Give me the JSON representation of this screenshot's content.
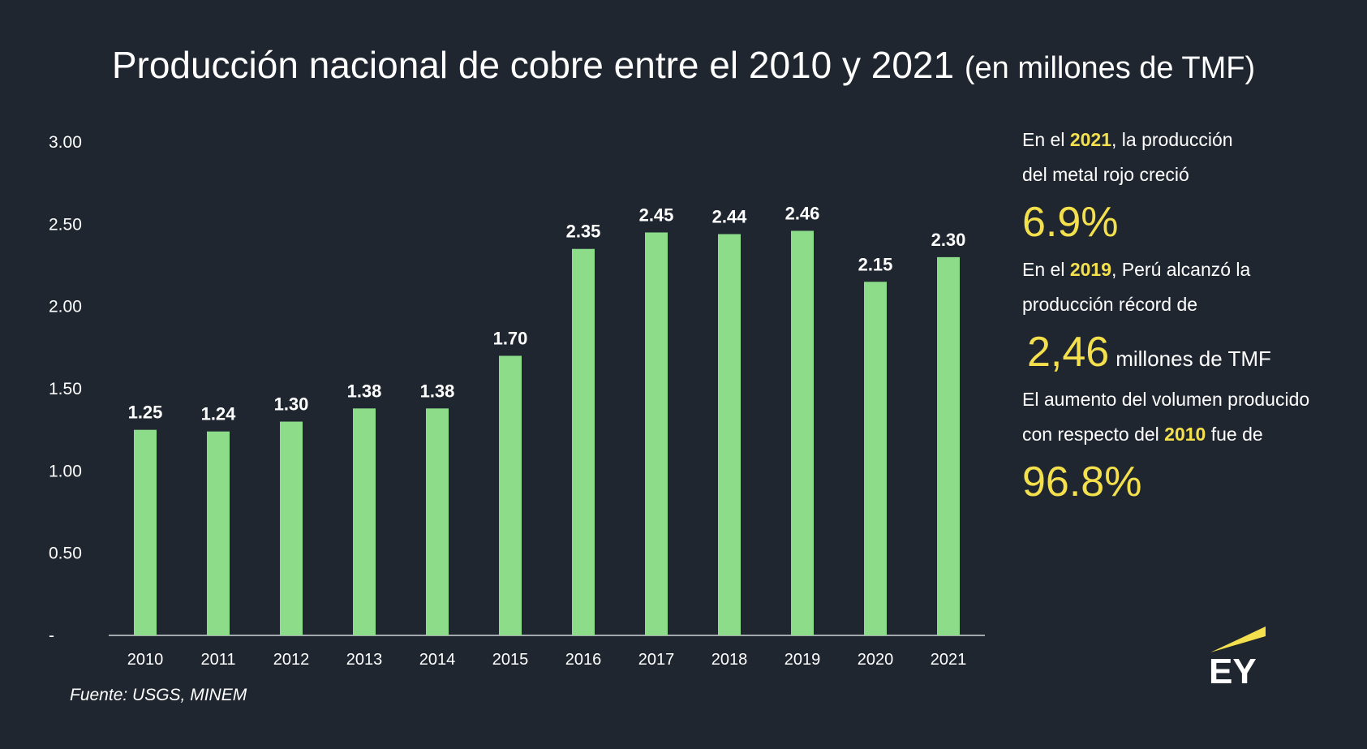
{
  "title": {
    "main": "Producción nacional de cobre entre el 2010 y 2021",
    "sub": "(en millones de TMF)"
  },
  "chart_data": {
    "type": "bar",
    "categories": [
      "2010",
      "2011",
      "2012",
      "2013",
      "2014",
      "2015",
      "2016",
      "2017",
      "2018",
      "2019",
      "2020",
      "2021"
    ],
    "values": [
      1.25,
      1.24,
      1.3,
      1.38,
      1.38,
      1.7,
      2.35,
      2.45,
      2.44,
      2.46,
      2.15,
      2.3
    ],
    "value_labels": [
      "1.25",
      "1.24",
      "1.30",
      "1.38",
      "1.38",
      "1.70",
      "2.35",
      "2.45",
      "2.44",
      "2.46",
      "2.15",
      "2.30"
    ],
    "ylim": [
      0,
      3
    ],
    "yticks": [
      0,
      0.5,
      1,
      1.5,
      2,
      2.5,
      3
    ],
    "ytick_labels": [
      "-",
      "0.50",
      "1.00",
      "1.50",
      "2.00",
      "2.50",
      "3.00"
    ],
    "grid": false,
    "bar_color": "#8cdc8a"
  },
  "source": "Fuente: USGS, MINEM",
  "panel": {
    "l1_pre": "En el ",
    "l1_year": "2021",
    "l1_post": ", la producción",
    "l2": "del metal rojo creció",
    "v1": "6.9%",
    "l3_pre": "En el ",
    "l3_year": "2019",
    "l3_post": ", Perú alcanzó la",
    "l4": "producción récord de",
    "v2": "2,46",
    "v2_unit": "millones de TMF",
    "l5": "El aumento del volumen producido",
    "l6_pre": "con respecto del ",
    "l6_year": "2010",
    "l6_post": " fue de",
    "v3": "96.8%"
  },
  "colors": {
    "background": "#1f2630",
    "highlight": "#f4e04d"
  },
  "logo": {
    "icon": "ey-logo"
  }
}
